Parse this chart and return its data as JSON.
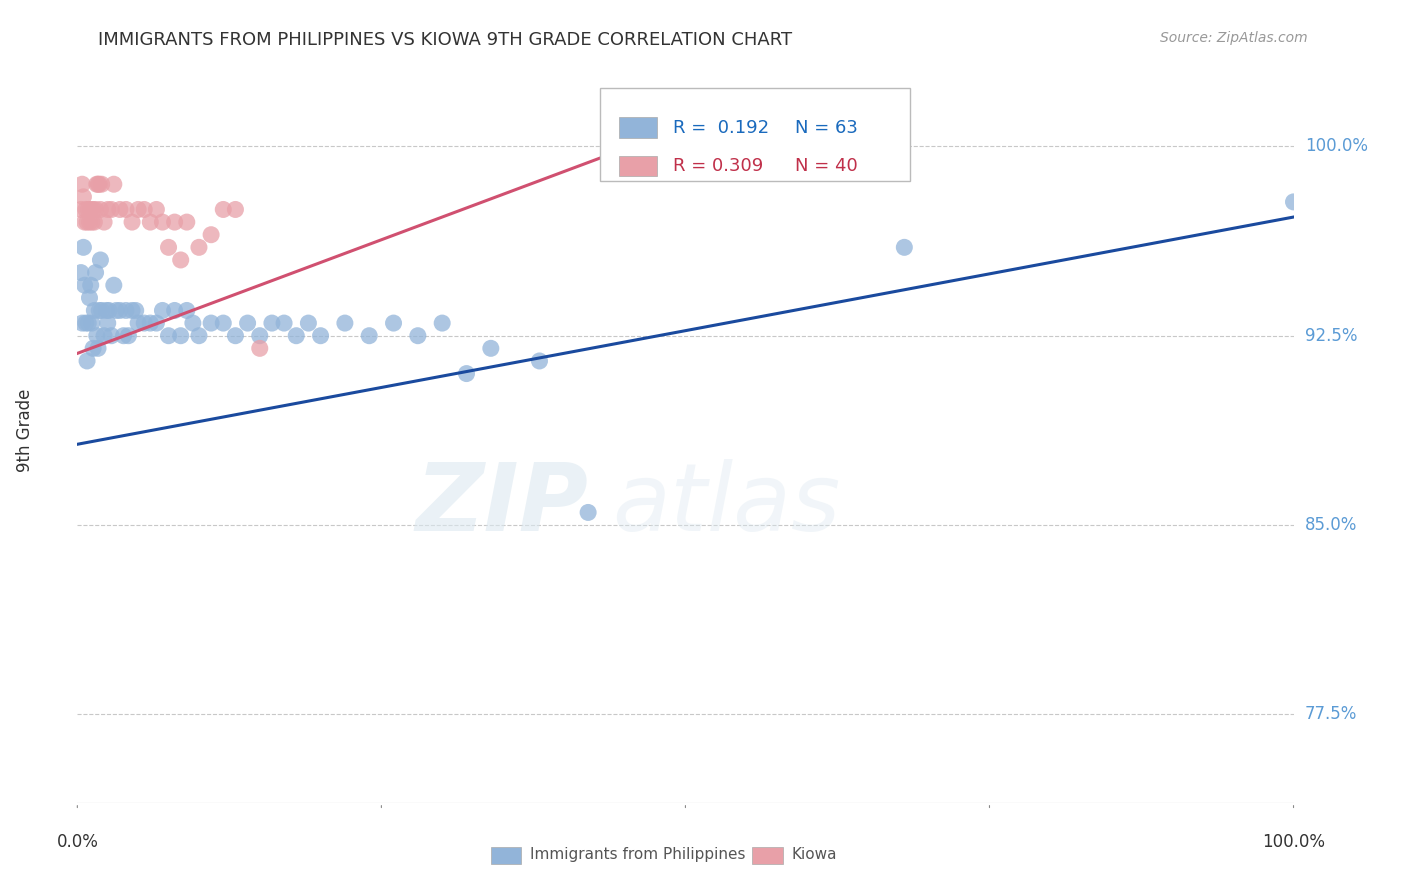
{
  "title": "IMMIGRANTS FROM PHILIPPINES VS KIOWA 9TH GRADE CORRELATION CHART",
  "source": "Source: ZipAtlas.com",
  "ylabel": "9th Grade",
  "xlim": [
    0.0,
    1.0
  ],
  "ylim": [
    0.74,
    1.035
  ],
  "yticks": [
    0.775,
    0.85,
    0.925,
    1.0
  ],
  "ytick_labels": [
    "77.5%",
    "85.0%",
    "92.5%",
    "100.0%"
  ],
  "color_blue": "#92b4d9",
  "color_pink": "#e8a0a8",
  "line_blue": "#1a4a9e",
  "line_pink": "#d05070",
  "watermark_zip": "ZIP",
  "watermark_atlas": "atlas",
  "blue_x": [
    0.003,
    0.004,
    0.005,
    0.006,
    0.007,
    0.008,
    0.009,
    0.01,
    0.011,
    0.012,
    0.013,
    0.014,
    0.015,
    0.016,
    0.017,
    0.018,
    0.019,
    0.02,
    0.022,
    0.024,
    0.025,
    0.026,
    0.028,
    0.03,
    0.032,
    0.035,
    0.038,
    0.04,
    0.042,
    0.045,
    0.048,
    0.05,
    0.055,
    0.06,
    0.065,
    0.07,
    0.075,
    0.08,
    0.085,
    0.09,
    0.095,
    0.1,
    0.11,
    0.12,
    0.13,
    0.14,
    0.15,
    0.16,
    0.17,
    0.18,
    0.19,
    0.2,
    0.22,
    0.24,
    0.26,
    0.28,
    0.3,
    0.32,
    0.34,
    0.38,
    0.42,
    0.68,
    1.0
  ],
  "blue_y": [
    0.95,
    0.93,
    0.96,
    0.945,
    0.93,
    0.915,
    0.93,
    0.94,
    0.945,
    0.93,
    0.92,
    0.935,
    0.95,
    0.925,
    0.92,
    0.935,
    0.955,
    0.935,
    0.925,
    0.935,
    0.93,
    0.935,
    0.925,
    0.945,
    0.935,
    0.935,
    0.925,
    0.935,
    0.925,
    0.935,
    0.935,
    0.93,
    0.93,
    0.93,
    0.93,
    0.935,
    0.925,
    0.935,
    0.925,
    0.935,
    0.93,
    0.925,
    0.93,
    0.93,
    0.925,
    0.93,
    0.925,
    0.93,
    0.93,
    0.925,
    0.93,
    0.925,
    0.93,
    0.925,
    0.93,
    0.925,
    0.93,
    0.91,
    0.92,
    0.915,
    0.855,
    0.96,
    0.978
  ],
  "pink_x": [
    0.003,
    0.004,
    0.005,
    0.006,
    0.007,
    0.008,
    0.009,
    0.01,
    0.011,
    0.012,
    0.013,
    0.014,
    0.015,
    0.016,
    0.017,
    0.018,
    0.019,
    0.02,
    0.022,
    0.025,
    0.028,
    0.03,
    0.035,
    0.04,
    0.045,
    0.05,
    0.055,
    0.06,
    0.065,
    0.07,
    0.075,
    0.08,
    0.085,
    0.09,
    0.1,
    0.11,
    0.12,
    0.13,
    0.15,
    0.45
  ],
  "pink_y": [
    0.975,
    0.985,
    0.98,
    0.97,
    0.975,
    0.97,
    0.975,
    0.97,
    0.975,
    0.97,
    0.975,
    0.97,
    0.975,
    0.985,
    0.985,
    0.985,
    0.975,
    0.985,
    0.97,
    0.975,
    0.975,
    0.985,
    0.975,
    0.975,
    0.97,
    0.975,
    0.975,
    0.97,
    0.975,
    0.97,
    0.96,
    0.97,
    0.955,
    0.97,
    0.96,
    0.965,
    0.975,
    0.975,
    0.92,
    1.0
  ],
  "blue_line_x0": 0.0,
  "blue_line_y0": 0.882,
  "blue_line_x1": 1.0,
  "blue_line_y1": 0.972,
  "pink_line_x0": 0.0,
  "pink_line_y0": 0.918,
  "pink_line_x1": 0.45,
  "pink_line_y1": 0.999
}
